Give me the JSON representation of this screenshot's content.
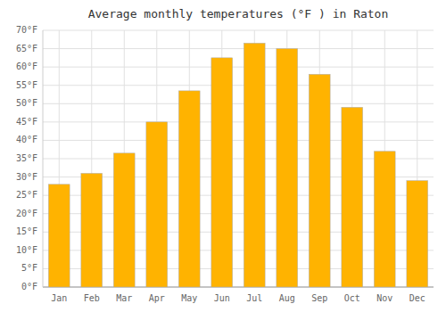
{
  "chart_data": {
    "type": "bar",
    "title": "Average monthly temperatures (°F ) in Raton",
    "categories": [
      "Jan",
      "Feb",
      "Mar",
      "Apr",
      "May",
      "Jun",
      "Jul",
      "Aug",
      "Sep",
      "Oct",
      "Nov",
      "Dec"
    ],
    "values": [
      28,
      31,
      36.5,
      45,
      53.5,
      62.5,
      66.5,
      65,
      58,
      49,
      37,
      29
    ],
    "color": "#FFB300",
    "ylim": [
      0,
      70
    ],
    "yticks": [
      {
        "value": 0,
        "label": "0°F"
      },
      {
        "value": 5,
        "label": "5°F"
      },
      {
        "value": 10,
        "label": "10°F"
      },
      {
        "value": 15,
        "label": "15°F"
      },
      {
        "value": 20,
        "label": "20°F"
      },
      {
        "value": 25,
        "label": "25°F"
      },
      {
        "value": 30,
        "label": "30°F"
      },
      {
        "value": 35,
        "label": "35°F"
      },
      {
        "value": 40,
        "label": "40°F"
      },
      {
        "value": 45,
        "label": "45°F"
      },
      {
        "value": 50,
        "label": "50°F"
      },
      {
        "value": 55,
        "label": "55°F"
      },
      {
        "value": 60,
        "label": "60°F"
      },
      {
        "value": 65,
        "label": "65°F"
      },
      {
        "value": 70,
        "label": "70°F"
      }
    ],
    "grid": true
  }
}
